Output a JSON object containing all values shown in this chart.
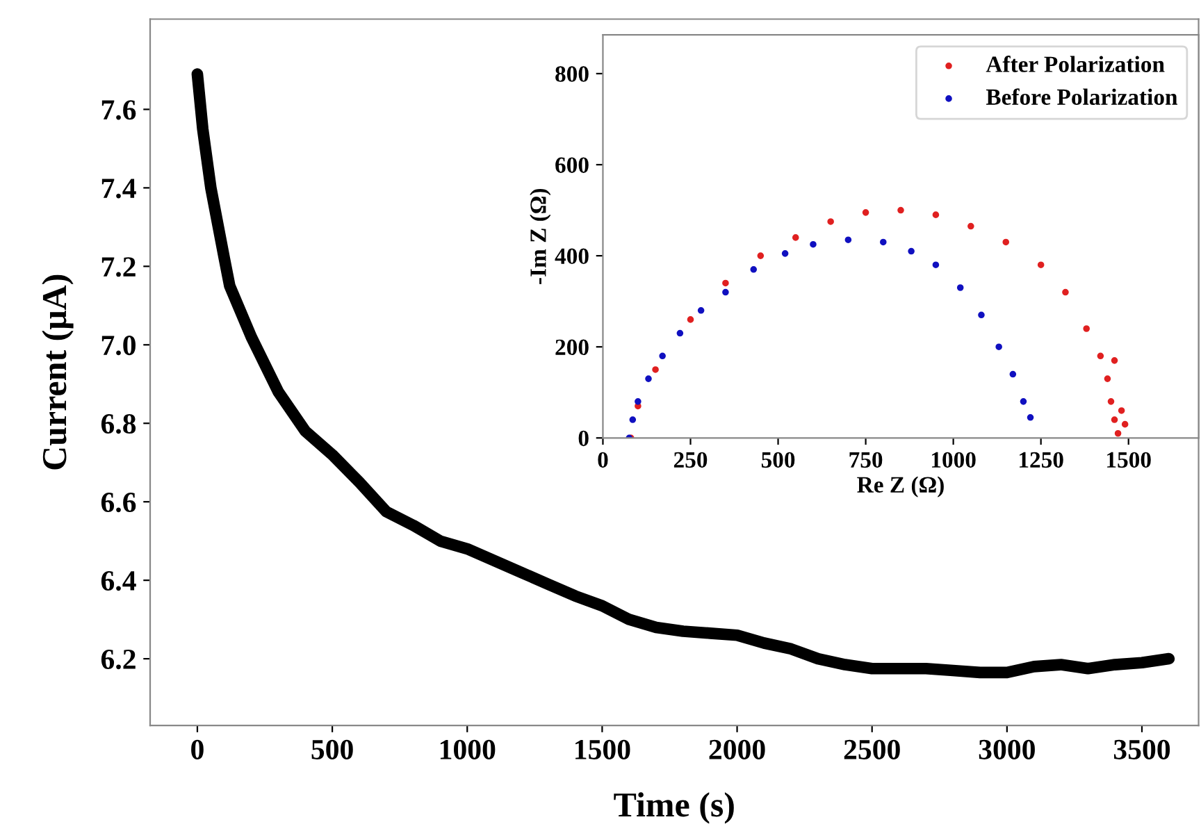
{
  "chart_data": [
    {
      "type": "line",
      "xlabel": "Time (s)",
      "ylabel": "Current (μA)",
      "xlim": [
        -175,
        3710
      ],
      "ylim": [
        6.03,
        7.83
      ],
      "xticks": [
        0,
        500,
        1000,
        1500,
        2000,
        2500,
        3000,
        3500
      ],
      "yticks": [
        {
          "value": 6.2,
          "label": "6.2"
        },
        {
          "value": 6.4,
          "label": "6.4"
        },
        {
          "value": 6.6,
          "label": "6.6"
        },
        {
          "value": 6.8,
          "label": "6.8"
        },
        {
          "value": 7,
          "label": "7.0"
        },
        {
          "value": 7.2,
          "label": "7.2"
        },
        {
          "value": 7.4,
          "label": "7.4"
        },
        {
          "value": 7.6,
          "label": "7.6"
        }
      ],
      "grid": false,
      "legend": false,
      "series": [
        {
          "color": "#000000",
          "x": [
            0,
            20,
            50,
            100,
            120,
            200,
            300,
            400,
            500,
            600,
            700,
            800,
            900,
            1000,
            1100,
            1200,
            1300,
            1400,
            1500,
            1600,
            1700,
            1800,
            1900,
            2000,
            2100,
            2200,
            2300,
            2400,
            2500,
            2600,
            2700,
            2800,
            2900,
            3000,
            3100,
            3200,
            3300,
            3400,
            3500,
            3600
          ],
          "values": [
            7.69,
            7.55,
            7.4,
            7.22,
            7.15,
            7.02,
            6.88,
            6.78,
            6.72,
            6.65,
            6.575,
            6.54,
            6.5,
            6.48,
            6.45,
            6.42,
            6.39,
            6.36,
            6.335,
            6.3,
            6.28,
            6.27,
            6.265,
            6.26,
            6.24,
            6.225,
            6.2,
            6.185,
            6.175,
            6.175,
            6.175,
            6.17,
            6.165,
            6.165,
            6.18,
            6.185,
            6.175,
            6.185,
            6.19,
            6.2
          ]
        }
      ]
    },
    {
      "type": "scatter",
      "xlabel": "Re Z (Ω)",
      "ylabel": "-Im Z (Ω)",
      "xlim": [
        0,
        1700
      ],
      "ylim": [
        0,
        885
      ],
      "xticks": [
        0,
        250,
        500,
        750,
        1000,
        1250,
        1500
      ],
      "yticks": [
        0,
        200,
        400,
        600,
        800
      ],
      "grid": false,
      "legend": "top right",
      "marker": "circle",
      "series": [
        {
          "name": "After Polarization",
          "color": "#e02020",
          "x": [
            80,
            100,
            150,
            250,
            350,
            450,
            550,
            650,
            750,
            850,
            950,
            1050,
            1150,
            1250,
            1320,
            1380,
            1420,
            1440,
            1450,
            1460,
            1470,
            1490,
            1460,
            1480
          ],
          "values": [
            0,
            70,
            150,
            260,
            340,
            400,
            440,
            475,
            495,
            500,
            490,
            465,
            430,
            380,
            320,
            240,
            180,
            130,
            80,
            40,
            10,
            30,
            170,
            60
          ]
        },
        {
          "name": "Before Polarization",
          "color": "#1010c0",
          "x": [
            75,
            85,
            100,
            130,
            170,
            220,
            280,
            350,
            430,
            520,
            600,
            700,
            800,
            880,
            950,
            1020,
            1080,
            1130,
            1170,
            1200,
            1220
          ],
          "values": [
            0,
            40,
            80,
            130,
            180,
            230,
            280,
            320,
            370,
            405,
            425,
            435,
            430,
            410,
            380,
            330,
            270,
            200,
            140,
            80,
            45
          ]
        }
      ]
    }
  ]
}
